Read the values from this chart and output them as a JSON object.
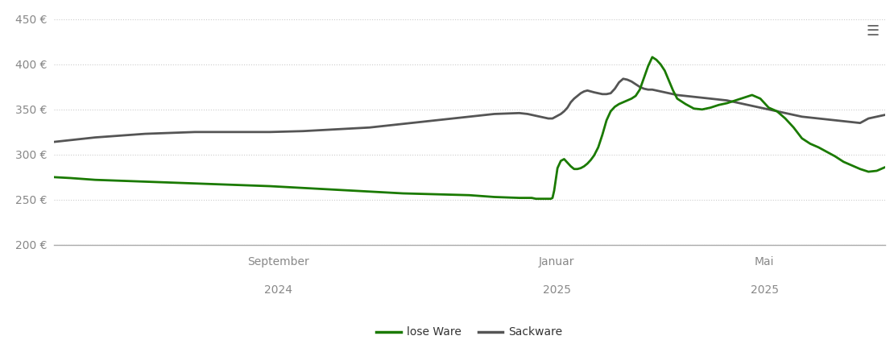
{
  "background_color": "#ffffff",
  "grid_color": "#cccccc",
  "lose_ware_color": "#1a7a00",
  "sackware_color": "#555555",
  "line_width": 2.0,
  "legend_labels": [
    "lose Ware",
    "Sackware"
  ],
  "ylim": [
    200,
    460
  ],
  "yticks": [
    200,
    250,
    300,
    350,
    400,
    450
  ],
  "ytick_labels": [
    "200 €",
    "250 €",
    "300 €",
    "350 €",
    "400 €",
    "450 €"
  ],
  "tick_info": [
    [
      0.27,
      "September",
      "2024"
    ],
    [
      0.605,
      "Januar",
      "2025"
    ],
    [
      0.855,
      "Mai",
      "2025"
    ]
  ],
  "lose_ware_x": [
    0.0,
    0.02,
    0.05,
    0.08,
    0.11,
    0.14,
    0.17,
    0.2,
    0.23,
    0.26,
    0.3,
    0.34,
    0.38,
    0.42,
    0.46,
    0.5,
    0.53,
    0.56,
    0.57,
    0.575,
    0.58,
    0.585,
    0.59,
    0.592,
    0.594,
    0.596,
    0.598,
    0.6,
    0.602,
    0.606,
    0.61,
    0.614,
    0.618,
    0.622,
    0.626,
    0.63,
    0.634,
    0.638,
    0.642,
    0.646,
    0.65,
    0.655,
    0.66,
    0.665,
    0.67,
    0.675,
    0.68,
    0.685,
    0.69,
    0.695,
    0.7,
    0.705,
    0.71,
    0.715,
    0.72,
    0.725,
    0.73,
    0.735,
    0.74,
    0.745,
    0.75,
    0.76,
    0.77,
    0.78,
    0.79,
    0.8,
    0.81,
    0.82,
    0.83,
    0.84,
    0.85,
    0.855,
    0.86,
    0.87,
    0.88,
    0.89,
    0.9,
    0.91,
    0.92,
    0.93,
    0.94,
    0.95,
    0.96,
    0.97,
    0.98,
    0.99,
    1.0
  ],
  "lose_ware_y": [
    275,
    274,
    272,
    271,
    270,
    269,
    268,
    267,
    266,
    265,
    263,
    261,
    259,
    257,
    256,
    255,
    253,
    252,
    252,
    252,
    251,
    251,
    251,
    251,
    251,
    251,
    251,
    252,
    260,
    285,
    293,
    295,
    291,
    287,
    284,
    284,
    285,
    287,
    290,
    294,
    299,
    308,
    322,
    338,
    348,
    353,
    356,
    358,
    360,
    362,
    365,
    372,
    385,
    398,
    408,
    405,
    400,
    393,
    382,
    371,
    362,
    356,
    351,
    350,
    352,
    355,
    357,
    360,
    363,
    366,
    362,
    357,
    352,
    348,
    340,
    330,
    318,
    312,
    308,
    303,
    298,
    292,
    288,
    284,
    281,
    282,
    286
  ],
  "sackware_x": [
    0.0,
    0.02,
    0.05,
    0.08,
    0.11,
    0.14,
    0.17,
    0.2,
    0.23,
    0.26,
    0.3,
    0.34,
    0.38,
    0.42,
    0.46,
    0.5,
    0.53,
    0.56,
    0.57,
    0.575,
    0.58,
    0.585,
    0.59,
    0.595,
    0.598,
    0.6,
    0.602,
    0.604,
    0.606,
    0.61,
    0.614,
    0.618,
    0.622,
    0.626,
    0.63,
    0.634,
    0.638,
    0.642,
    0.646,
    0.65,
    0.655,
    0.66,
    0.665,
    0.67,
    0.675,
    0.68,
    0.685,
    0.69,
    0.695,
    0.7,
    0.705,
    0.71,
    0.715,
    0.72,
    0.725,
    0.73,
    0.735,
    0.74,
    0.745,
    0.75,
    0.76,
    0.77,
    0.78,
    0.79,
    0.8,
    0.81,
    0.82,
    0.83,
    0.84,
    0.85,
    0.86,
    0.87,
    0.88,
    0.89,
    0.9,
    0.91,
    0.92,
    0.93,
    0.94,
    0.95,
    0.96,
    0.97,
    0.98,
    0.99,
    1.0
  ],
  "sackware_y": [
    314,
    316,
    319,
    321,
    323,
    324,
    325,
    325,
    325,
    325,
    326,
    328,
    330,
    334,
    338,
    342,
    345,
    346,
    345,
    344,
    343,
    342,
    341,
    340,
    340,
    340,
    341,
    342,
    343,
    345,
    348,
    352,
    358,
    362,
    365,
    368,
    370,
    371,
    370,
    369,
    368,
    367,
    367,
    368,
    373,
    380,
    384,
    383,
    381,
    378,
    375,
    373,
    372,
    372,
    371,
    370,
    369,
    368,
    367,
    366,
    365,
    364,
    363,
    362,
    361,
    360,
    358,
    356,
    354,
    352,
    350,
    348,
    346,
    344,
    342,
    341,
    340,
    339,
    338,
    337,
    336,
    335,
    340,
    342,
    344
  ]
}
